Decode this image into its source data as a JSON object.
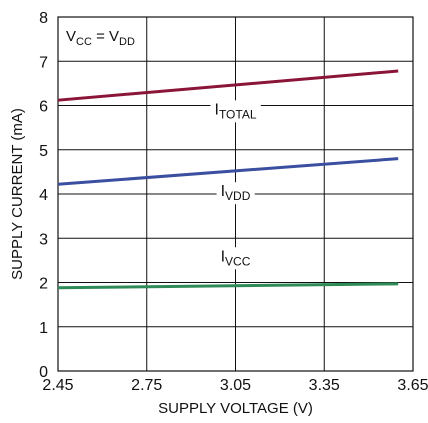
{
  "chart_data": {
    "type": "line",
    "title": "",
    "xlabel": "SUPPLY VOLTAGE (V)",
    "ylabel": "SUPPLY CURRENT (mA)",
    "xlim": [
      2.45,
      3.65
    ],
    "ylim": [
      0,
      8
    ],
    "x_ticks": [
      "2.45",
      "2.75",
      "3.05",
      "3.35",
      "3.65"
    ],
    "y_ticks": [
      "0",
      "1",
      "2",
      "3",
      "4",
      "5",
      "6",
      "7",
      "8"
    ],
    "grid": true,
    "legend": {
      "main": "V",
      "sub1": "CC",
      "mid": " = V",
      "sub2": "DD",
      "placement": "top-left"
    },
    "series": [
      {
        "name_main": "I",
        "name_sub": "TOTAL",
        "color": "#8a1538",
        "x": [
          2.45,
          3.6
        ],
        "y": [
          6.12,
          6.78
        ],
        "label_x": 3.05,
        "label_y": 5.8
      },
      {
        "name_main": "I",
        "name_sub": "VDD",
        "color": "#3b4fa0",
        "x": [
          2.45,
          3.6
        ],
        "y": [
          4.22,
          4.8
        ],
        "label_x": 3.05,
        "label_y": 3.95
      },
      {
        "name_main": "I",
        "name_sub": "VCC",
        "color": "#2e8b57",
        "x": [
          2.45,
          3.6
        ],
        "y": [
          1.88,
          1.97
        ],
        "label_x": 3.05,
        "label_y": 2.48
      }
    ]
  }
}
